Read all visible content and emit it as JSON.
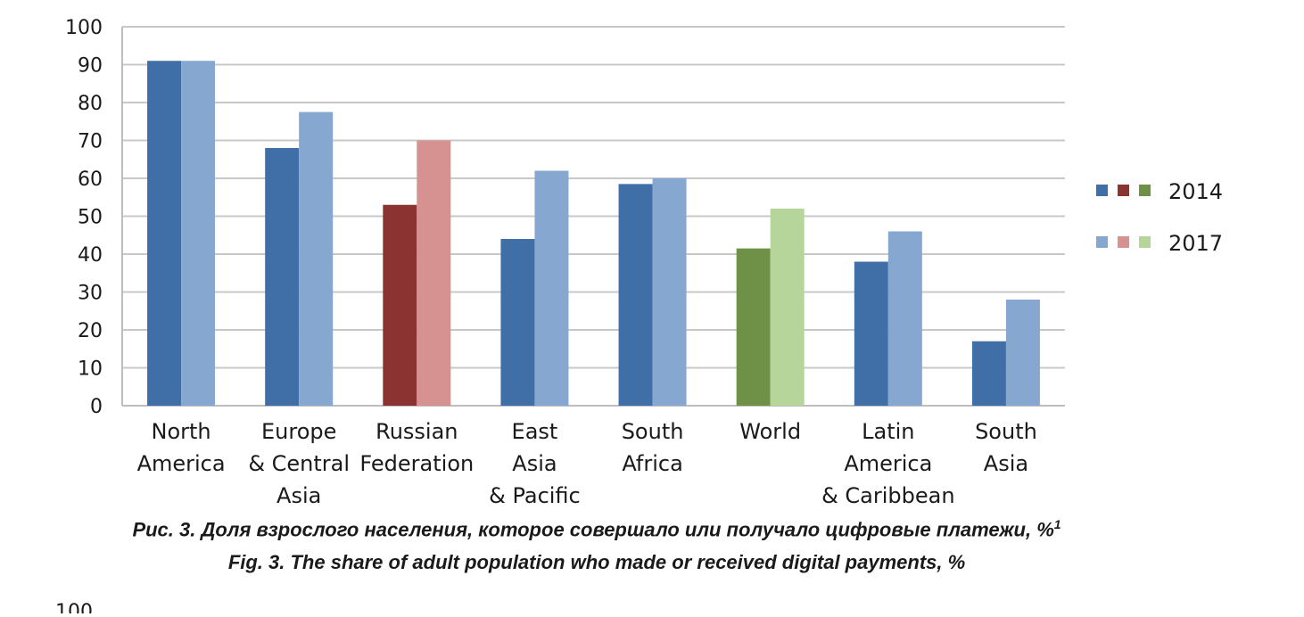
{
  "chart_data": {
    "type": "bar",
    "categories": [
      [
        "North",
        "America"
      ],
      [
        "Europe",
        "& Central",
        "Asia"
      ],
      [
        "Russian",
        "Federation"
      ],
      [
        "East",
        "Asia",
        "& Pacific"
      ],
      [
        "South",
        "Africa"
      ],
      [
        "World"
      ],
      [
        "Latin",
        "America",
        "& Caribbean"
      ],
      [
        "South",
        "Asia"
      ]
    ],
    "series": [
      {
        "name": "2014",
        "values": [
          91,
          68,
          53,
          44,
          58.5,
          41.5,
          38,
          17
        ]
      },
      {
        "name": "2017",
        "values": [
          91,
          77.5,
          70,
          62,
          60,
          52,
          46,
          28
        ]
      }
    ],
    "ylim": [
      0,
      100
    ],
    "yticks": [
      0,
      10,
      20,
      30,
      40,
      50,
      60,
      70,
      80,
      90,
      100
    ],
    "grid": true,
    "legend_position": "right",
    "colors": {
      "default": {
        "2014": "#3f6fa6",
        "2017": "#86a8d0"
      },
      "Russian Federation": {
        "2014": "#8b3330",
        "2017": "#d69290"
      },
      "World": {
        "2014": "#6e9147",
        "2017": "#b6d59a"
      }
    },
    "legend_swatches": {
      "2014": [
        "#3f6fa6",
        "#8b3330",
        "#6e9147"
      ],
      "2017": [
        "#86a8d0",
        "#d69290",
        "#b6d59a"
      ]
    }
  },
  "captions": {
    "ru": "Рис. 3. Доля взрослого населения, которое совершало или получало цифровые платежи, %",
    "ru_sup": "1",
    "en": "Fig. 3. The share of adult population who made or received digital payments, %"
  },
  "page_fragment": "100"
}
